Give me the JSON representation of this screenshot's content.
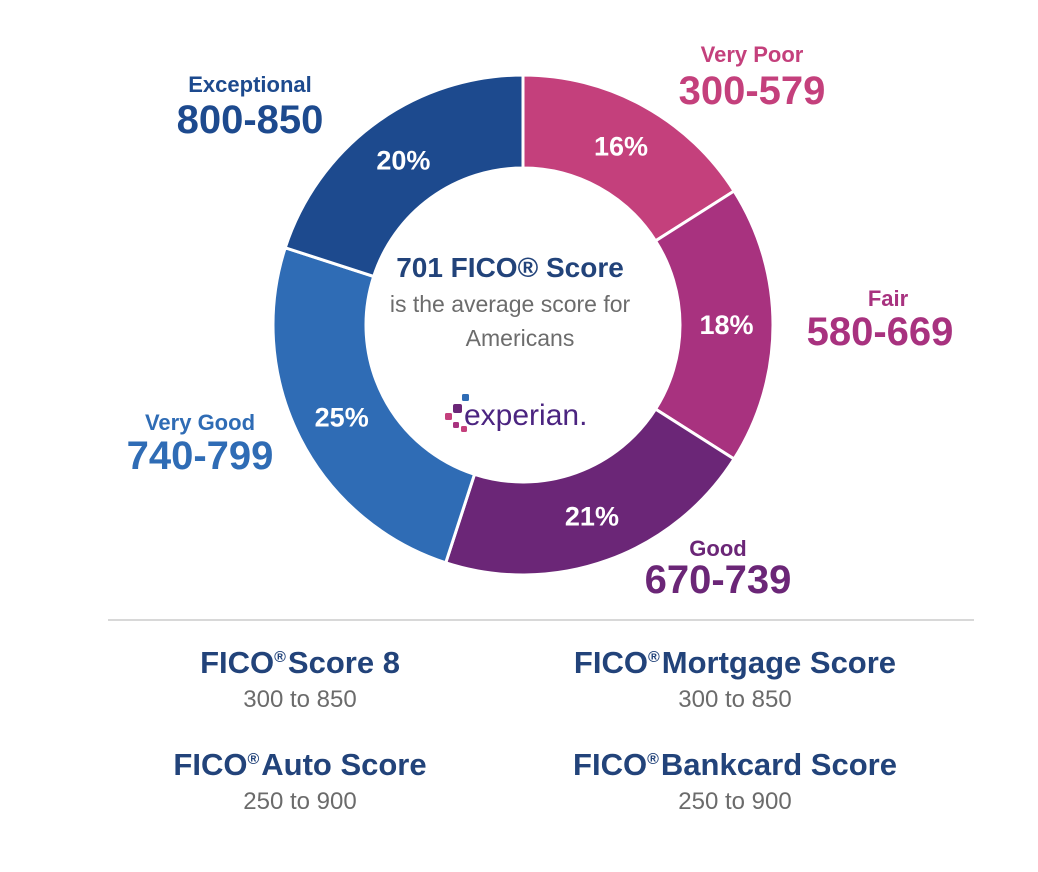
{
  "chart_data": {
    "type": "donut",
    "center": {
      "title": "701 FICO® Score",
      "subtitle_line1": "is the average score for",
      "subtitle_line2": "Americans",
      "logo_text": "experian."
    },
    "segments": [
      {
        "name": "Very Poor",
        "range": "300-579",
        "value": 16,
        "label": "16%",
        "color": "#c4407c"
      },
      {
        "name": "Fair",
        "range": "580-669",
        "value": 18,
        "label": "18%",
        "color": "#a8327f"
      },
      {
        "name": "Good",
        "range": "670-739",
        "value": 21,
        "label": "21%",
        "color": "#6b2677"
      },
      {
        "name": "Very Good",
        "range": "740-799",
        "value": 25,
        "label": "25%",
        "color": "#2f6cb5"
      },
      {
        "name": "Exceptional",
        "range": "800-850",
        "value": 20,
        "label": "20%",
        "color": "#1d4a8e"
      }
    ]
  },
  "scores": [
    {
      "name_prefix": "FICO",
      "name_suffix": "Score 8",
      "range": "300 to 850"
    },
    {
      "name_prefix": "FICO",
      "name_suffix": "Mortgage Score",
      "range": "300 to 850"
    },
    {
      "name_prefix": "FICO",
      "name_suffix": "Auto Score",
      "range": "250 to 900"
    },
    {
      "name_prefix": "FICO",
      "name_suffix": "Bankcard Score",
      "range": "250 to 900"
    }
  ],
  "registered_mark": "®",
  "colors": {
    "title_navy": "#22437a",
    "gray_text": "#6b6b6b",
    "logo_purple": "#4b2480",
    "logo_magenta": "#c4407c",
    "logo_blue": "#2f6cb5"
  }
}
